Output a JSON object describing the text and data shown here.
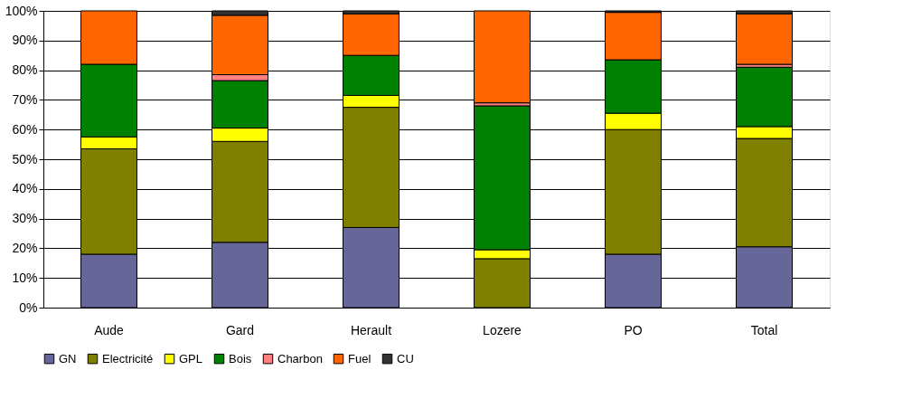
{
  "chart_data": {
    "type": "bar",
    "stacked": true,
    "categories": [
      "Aude",
      "Gard",
      "Herault",
      "Lozere",
      "PO",
      "Total"
    ],
    "series": [
      {
        "name": "GN",
        "color": "#666699",
        "values": [
          18,
          22,
          27,
          0,
          18,
          20.5
        ]
      },
      {
        "name": "Electricité",
        "color": "#808000",
        "values": [
          35.5,
          34,
          40.5,
          16.5,
          42,
          36.5
        ]
      },
      {
        "name": "GPL",
        "color": "#ffff00",
        "values": [
          4,
          4.5,
          4,
          3,
          5.5,
          4
        ]
      },
      {
        "name": "Bois",
        "color": "#008000",
        "values": [
          24.5,
          16,
          13.5,
          48.5,
          18,
          20
        ]
      },
      {
        "name": "Charbon",
        "color": "#ff8080",
        "values": [
          null,
          2,
          0,
          1,
          0,
          1
        ]
      },
      {
        "name": "Fuel",
        "color": "#ff6600",
        "values": [
          18,
          20,
          14,
          31,
          16,
          17
        ]
      },
      {
        "name": "CU",
        "color": "#333333",
        "values": [
          0,
          1.5,
          1,
          0,
          0.5,
          1
        ]
      }
    ],
    "ylim": [
      0,
      100
    ],
    "yticks": [
      {
        "value": 0,
        "label": "0%"
      },
      {
        "value": 10,
        "label": "10%"
      },
      {
        "value": 20,
        "label": "20%"
      },
      {
        "value": 30,
        "label": "30%"
      },
      {
        "value": 40,
        "label": "40%"
      },
      {
        "value": 50,
        "label": "50%"
      },
      {
        "value": 60,
        "label": "60%"
      },
      {
        "value": 70,
        "label": "70%"
      },
      {
        "value": 80,
        "label": "80%"
      },
      {
        "value": 90,
        "label": "90%"
      },
      {
        "value": 100,
        "label": "100%"
      }
    ],
    "grid": "y",
    "legend": "bottom"
  }
}
